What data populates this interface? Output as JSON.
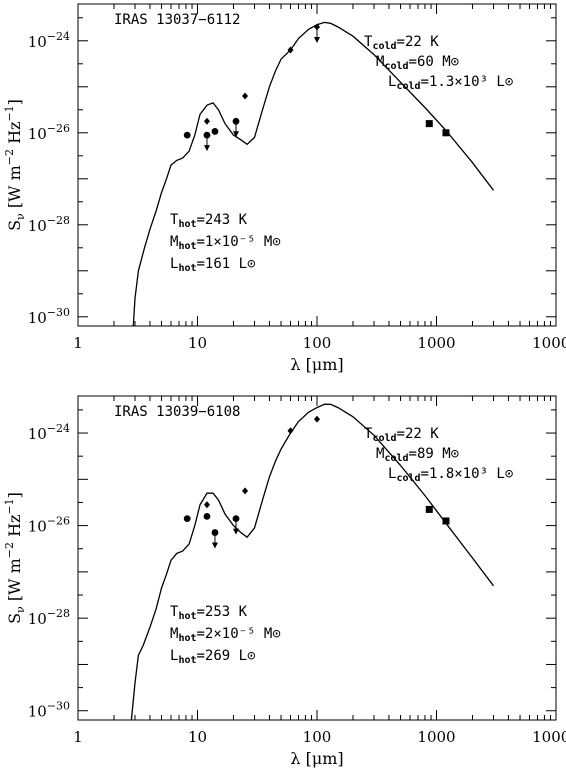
{
  "chart_data": [
    {
      "type": "scatter",
      "log_x": true,
      "log_y": true,
      "xlim": [
        1,
        10000
      ],
      "ylim": [
        -30.2,
        -23.2
      ],
      "xlabel": "λ [μm]",
      "ylabel": "S_ν [W m^-2 Hz^-1]",
      "title": "IRAS 13037−6112",
      "x_ticks": [
        "1",
        "10",
        "100",
        "1000",
        "10000"
      ],
      "y_ticks": [
        {
          "value": -24,
          "label": "10−24"
        },
        {
          "value": -26,
          "label": "10−26"
        },
        {
          "value": -28,
          "label": "10−28"
        },
        {
          "value": -30,
          "label": "10−30"
        }
      ],
      "annotations": {
        "cold": [
          "Tcold=22 K",
          "Mcold=60 M⊙",
          "Lcold=1.3×10³ L⊙"
        ],
        "hot": [
          "Thot=243 K",
          "Mhot=1×10⁻⁵ M⊙",
          "Lhot=161 L⊙"
        ]
      },
      "model_curve": [
        [
          2.9,
          -30.2
        ],
        [
          3.0,
          -29.6
        ],
        [
          3.2,
          -29.0
        ],
        [
          3.6,
          -28.5
        ],
        [
          4.0,
          -28.1
        ],
        [
          4.5,
          -27.7
        ],
        [
          5.0,
          -27.3
        ],
        [
          5.5,
          -27.0
        ],
        [
          6.0,
          -26.7
        ],
        [
          6.7,
          -26.6
        ],
        [
          7.5,
          -26.55
        ],
        [
          8.5,
          -26.4
        ],
        [
          9.5,
          -26.05
        ],
        [
          10.5,
          -25.6
        ],
        [
          12.0,
          -25.4
        ],
        [
          13.5,
          -25.35
        ],
        [
          15.0,
          -25.5
        ],
        [
          17.0,
          -25.8
        ],
        [
          20.0,
          -26.05
        ],
        [
          23.0,
          -26.15
        ],
        [
          26.0,
          -26.25
        ],
        [
          30.0,
          -26.1
        ],
        [
          35.0,
          -25.5
        ],
        [
          40.0,
          -25.0
        ],
        [
          45.0,
          -24.65
        ],
        [
          50.0,
          -24.4
        ],
        [
          60.0,
          -24.2
        ],
        [
          70.0,
          -23.95
        ],
        [
          85.0,
          -23.75
        ],
        [
          100.0,
          -23.65
        ],
        [
          115.0,
          -23.6
        ],
        [
          130.0,
          -23.62
        ],
        [
          150.0,
          -23.7
        ],
        [
          200.0,
          -23.9
        ],
        [
          300.0,
          -24.3
        ],
        [
          500.0,
          -24.9
        ],
        [
          800.0,
          -25.45
        ],
        [
          1200.0,
          -25.95
        ],
        [
          2000.0,
          -26.65
        ],
        [
          3000.0,
          -27.25
        ]
      ],
      "series": [
        {
          "name": "",
          "marker": "circle",
          "points": [
            [
              8.2,
              -26.05
            ],
            [
              14.0,
              -25.97
            ]
          ]
        },
        {
          "name": "",
          "marker": "circle-upper-limit",
          "points": [
            [
              12.0,
              -26.05
            ],
            [
              21.0,
              -25.75
            ]
          ]
        },
        {
          "name": "",
          "marker": "diamond",
          "points": [
            [
              12.0,
              -25.75
            ],
            [
              25.0,
              -25.2
            ],
            [
              60.0,
              -24.2
            ]
          ]
        },
        {
          "name": "",
          "marker": "diamond-upper-limit",
          "points": [
            [
              100.0,
              -23.7
            ]
          ]
        },
        {
          "name": "",
          "marker": "square",
          "points": [
            [
              870.0,
              -25.8
            ],
            [
              1200.0,
              -26.0
            ]
          ]
        }
      ]
    },
    {
      "type": "scatter",
      "log_x": true,
      "log_y": true,
      "xlim": [
        1,
        10000
      ],
      "ylim": [
        -30.2,
        -23.2
      ],
      "xlabel": "λ [μm]",
      "ylabel": "S_ν [W m^-2 Hz^-1]",
      "title": "IRAS 13039−6108",
      "x_ticks": [
        "1",
        "10",
        "100",
        "1000",
        "10000"
      ],
      "y_ticks": [
        {
          "value": -24,
          "label": "10−24"
        },
        {
          "value": -26,
          "label": "10−26"
        },
        {
          "value": -28,
          "label": "10−28"
        },
        {
          "value": -30,
          "label": "10−30"
        }
      ],
      "annotations": {
        "cold": [
          "Tcold=22 K",
          "Mcold=89 M⊙",
          "Lcold=1.8×10³ L⊙"
        ],
        "hot": [
          "Thot=253 K",
          "Mhot=2×10⁻⁵ M⊙",
          "Lhot=269 L⊙"
        ]
      },
      "model_curve": [
        [
          2.8,
          -30.2
        ],
        [
          3.0,
          -29.4
        ],
        [
          3.2,
          -28.8
        ],
        [
          3.5,
          -28.6
        ],
        [
          4.0,
          -28.2
        ],
        [
          4.5,
          -27.8
        ],
        [
          5.0,
          -27.35
        ],
        [
          5.5,
          -27.05
        ],
        [
          6.0,
          -26.75
        ],
        [
          6.7,
          -26.6
        ],
        [
          7.5,
          -26.55
        ],
        [
          8.5,
          -26.4
        ],
        [
          9.5,
          -26.0
        ],
        [
          10.5,
          -25.55
        ],
        [
          12.0,
          -25.3
        ],
        [
          13.5,
          -25.3
        ],
        [
          15.0,
          -25.45
        ],
        [
          17.0,
          -25.75
        ],
        [
          20.0,
          -26.0
        ],
        [
          23.0,
          -26.15
        ],
        [
          26.0,
          -26.25
        ],
        [
          30.0,
          -26.05
        ],
        [
          35.0,
          -25.45
        ],
        [
          40.0,
          -24.95
        ],
        [
          45.0,
          -24.6
        ],
        [
          50.0,
          -24.35
        ],
        [
          60.0,
          -24.0
        ],
        [
          70.0,
          -23.75
        ],
        [
          85.0,
          -23.55
        ],
        [
          100.0,
          -23.45
        ],
        [
          115.0,
          -23.38
        ],
        [
          130.0,
          -23.38
        ],
        [
          150.0,
          -23.45
        ],
        [
          200.0,
          -23.65
        ],
        [
          300.0,
          -24.05
        ],
        [
          500.0,
          -24.7
        ],
        [
          800.0,
          -25.35
        ],
        [
          1200.0,
          -25.95
        ],
        [
          2000.0,
          -26.7
        ],
        [
          3000.0,
          -27.3
        ]
      ],
      "series": [
        {
          "name": "",
          "marker": "circle",
          "points": [
            [
              8.2,
              -25.85
            ],
            [
              12.0,
              -25.8
            ]
          ]
        },
        {
          "name": "",
          "marker": "circle-upper-limit",
          "points": [
            [
              14.0,
              -26.15
            ],
            [
              21.0,
              -25.85
            ]
          ]
        },
        {
          "name": "",
          "marker": "diamond",
          "points": [
            [
              12.0,
              -25.55
            ],
            [
              25.0,
              -25.25
            ],
            [
              60.0,
              -23.95
            ],
            [
              100.0,
              -23.7
            ]
          ]
        },
        {
          "name": "",
          "marker": "square",
          "points": [
            [
              870.0,
              -25.65
            ],
            [
              1200.0,
              -25.9
            ]
          ]
        }
      ]
    }
  ]
}
